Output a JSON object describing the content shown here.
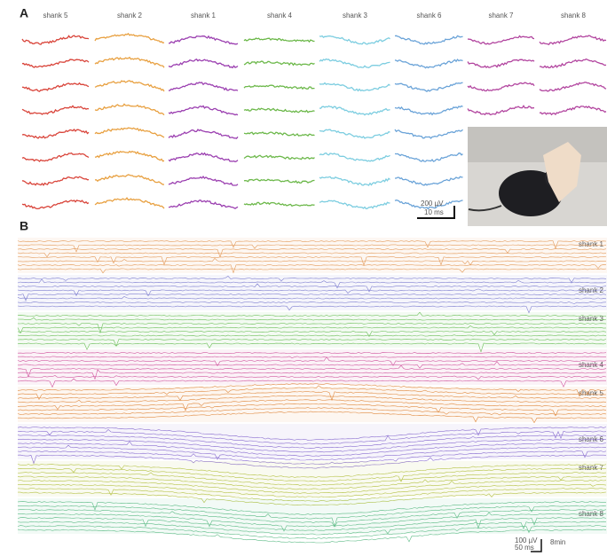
{
  "panel_a": {
    "label": "A",
    "shank_labels": [
      "shank 5",
      "shank 2",
      "shank 1",
      "shank 4",
      "shank 3",
      "shank 6",
      "shank 7",
      "shank 8"
    ],
    "scale_bar": {
      "voltage": "200 µV",
      "time": "10 ms"
    }
  },
  "panel_b": {
    "label": "B",
    "shank_labels": [
      "shank 1",
      "shank 2",
      "shank 3",
      "shank 4",
      "shank 5",
      "shank 6",
      "shank 7",
      "shank 8"
    ],
    "scale_bar": {
      "voltage": "100 µV",
      "time": "50 ms",
      "duration": "8min"
    }
  }
}
